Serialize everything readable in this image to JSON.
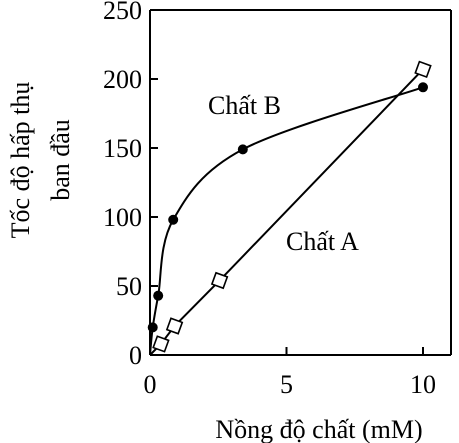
{
  "chart_data": {
    "type": "line",
    "xlabel": "Nồng độ chất (mM)",
    "ylabel_line1": "Tốc độ hấp thụ",
    "ylabel_line2": "ban đầu",
    "xlim": [
      0,
      11
    ],
    "ylim": [
      0,
      250
    ],
    "x_ticks": [
      0,
      5,
      10
    ],
    "y_ticks": [
      0,
      50,
      100,
      150,
      200,
      250
    ],
    "grid": false,
    "series": [
      {
        "name": "Chất B",
        "marker": "filled-circle",
        "curve": "saturating",
        "points": [
          {
            "x": 0.0,
            "y": 0
          },
          {
            "x": 0.1,
            "y": 20
          },
          {
            "x": 0.3,
            "y": 43
          },
          {
            "x": 0.85,
            "y": 98
          },
          {
            "x": 3.4,
            "y": 149
          },
          {
            "x": 10.0,
            "y": 194
          }
        ]
      },
      {
        "name": "Chất A",
        "marker": "open-diamond",
        "curve": "linear",
        "points": [
          {
            "x": 0.0,
            "y": 0
          },
          {
            "x": 0.4,
            "y": 8
          },
          {
            "x": 0.9,
            "y": 21
          },
          {
            "x": 2.55,
            "y": 54
          },
          {
            "x": 10.0,
            "y": 207
          }
        ]
      }
    ],
    "annotations": {
      "series_b_label": "Chất B",
      "series_a_label": "Chất A"
    }
  }
}
